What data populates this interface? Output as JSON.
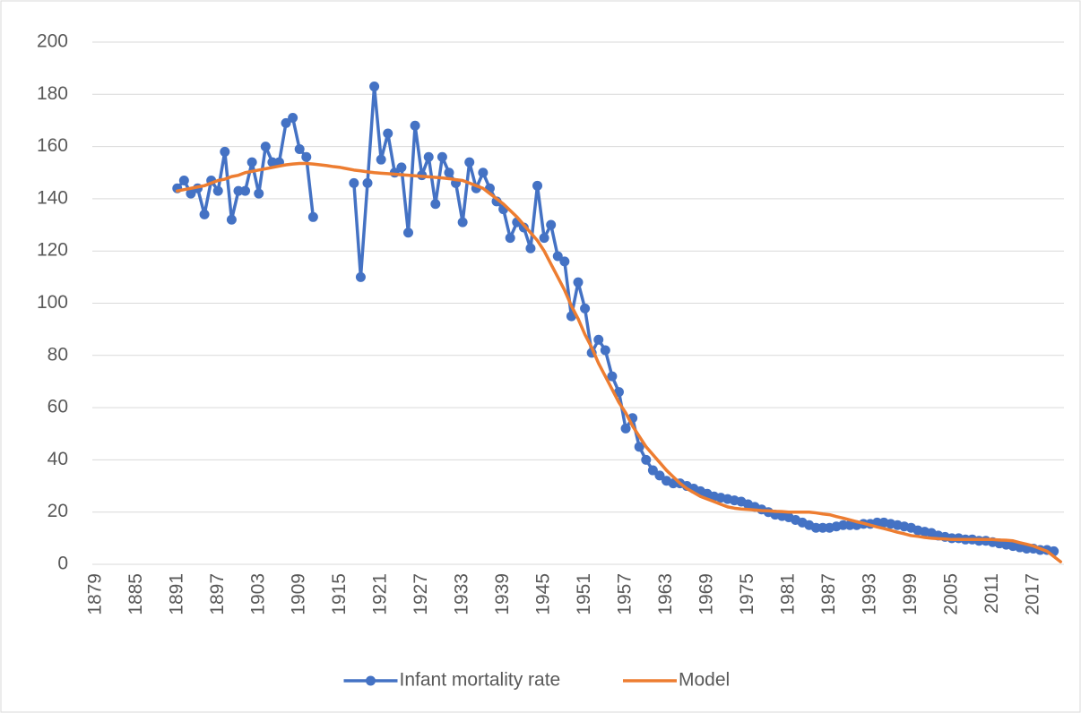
{
  "chart_data": {
    "type": "line",
    "categories": [
      "1879",
      null,
      null,
      null,
      null,
      null,
      "1885",
      null,
      null,
      null,
      null,
      null,
      "1891",
      null,
      null,
      null,
      null,
      null,
      "1897",
      null,
      null,
      null,
      null,
      null,
      "1903",
      null,
      null,
      null,
      null,
      null,
      "1909",
      null,
      null,
      null,
      null,
      null,
      "1915",
      null,
      null,
      null,
      null,
      null,
      "1921",
      null,
      null,
      null,
      null,
      null,
      "1927",
      null,
      null,
      null,
      null,
      null,
      "1933",
      null,
      null,
      null,
      null,
      null,
      "1939",
      null,
      null,
      null,
      null,
      null,
      "1945",
      null,
      null,
      null,
      null,
      null,
      "1951",
      null,
      null,
      null,
      null,
      null,
      "1957",
      null,
      null,
      null,
      null,
      null,
      "1963",
      null,
      null,
      null,
      null,
      null,
      "1969",
      null,
      null,
      null,
      null,
      null,
      "1975",
      null,
      null,
      null,
      null,
      null,
      "1981",
      null,
      null,
      null,
      null,
      null,
      "1987",
      null,
      null,
      null,
      null,
      null,
      "1993",
      null,
      null,
      null,
      null,
      null,
      "1999",
      null,
      null,
      null,
      null,
      null,
      "2005",
      null,
      null,
      null,
      null,
      null,
      "2011",
      null,
      null,
      null,
      null,
      null,
      "2017",
      null,
      null,
      null,
      null
    ],
    "series": [
      {
        "name": "Infant mortality rate",
        "color": "#4472c4",
        "markers": true,
        "values": [
          null,
          null,
          null,
          null,
          null,
          null,
          null,
          null,
          null,
          null,
          null,
          null,
          144,
          147,
          142,
          144,
          134,
          147,
          143,
          158,
          132,
          143,
          143,
          154,
          142,
          160,
          154,
          154,
          169,
          171,
          159,
          156,
          133,
          null,
          null,
          null,
          null,
          null,
          146,
          110,
          146,
          183,
          155,
          165,
          150,
          152,
          127,
          168,
          149,
          156,
          138,
          156,
          150,
          146,
          131,
          154,
          144,
          150,
          144,
          139,
          136,
          125,
          131,
          129,
          121,
          145,
          125,
          130,
          118,
          116,
          95,
          108,
          98,
          81,
          86,
          82,
          72,
          66,
          52,
          56,
          45,
          40,
          36,
          34,
          32,
          31,
          31,
          30,
          29,
          28,
          27,
          26,
          25.5,
          25,
          24.5,
          24,
          23,
          22,
          21,
          20,
          19,
          18.5,
          18,
          17,
          16,
          15,
          14,
          14,
          14,
          14.5,
          15,
          15,
          15,
          15.5,
          15.5,
          16,
          16,
          15.5,
          15,
          14.5,
          14,
          13,
          12.5,
          12,
          11,
          10.5,
          10,
          10,
          9.5,
          9.5,
          9,
          9,
          8.5,
          8,
          7.5,
          7,
          6.5,
          6,
          6,
          5.5,
          5.5,
          5,
          null
        ]
      },
      {
        "name": "Model",
        "color": "#ed7d31",
        "markers": false,
        "values": [
          null,
          null,
          null,
          null,
          null,
          null,
          null,
          null,
          null,
          null,
          null,
          null,
          143,
          143.5,
          144,
          144.5,
          145,
          146,
          147,
          147.5,
          148.5,
          149,
          150,
          150.5,
          151,
          151.5,
          152,
          152.5,
          153,
          153.3,
          153.5,
          153.5,
          153.3,
          153,
          152.7,
          152.3,
          152,
          151.5,
          151,
          150.7,
          150.3,
          150,
          149.8,
          149.6,
          149.4,
          149.2,
          149,
          148.8,
          148.6,
          148.4,
          148.2,
          148,
          147.7,
          147.3,
          147,
          146,
          145,
          144,
          142,
          140,
          138,
          135.5,
          133,
          130,
          127,
          124,
          120,
          115,
          110,
          105,
          99,
          94,
          88,
          83,
          77,
          72,
          67,
          62,
          58,
          53,
          49,
          45,
          42,
          39,
          36,
          33.5,
          31,
          29,
          27.5,
          26,
          25,
          24,
          23,
          22,
          21.5,
          21.2,
          21,
          20.8,
          20.6,
          20.5,
          20.3,
          20.2,
          20,
          20,
          20,
          20,
          19.7,
          19.3,
          19,
          18.3,
          17.7,
          17,
          16.3,
          15.7,
          15,
          14.3,
          13.7,
          13,
          12.3,
          11.7,
          11,
          10.7,
          10.3,
          10,
          9.8,
          9.7,
          9.5,
          9.5,
          9.5,
          9.5,
          9.5,
          9.5,
          9.5,
          9.3,
          9.2,
          9,
          8.3,
          7.7,
          7,
          6,
          5,
          3,
          1
        ]
      }
    ],
    "ylim": [
      0,
      200
    ],
    "yticks": [
      0,
      20,
      40,
      60,
      80,
      100,
      120,
      140,
      160,
      180,
      200
    ],
    "grid": true,
    "legend": "bottom"
  }
}
